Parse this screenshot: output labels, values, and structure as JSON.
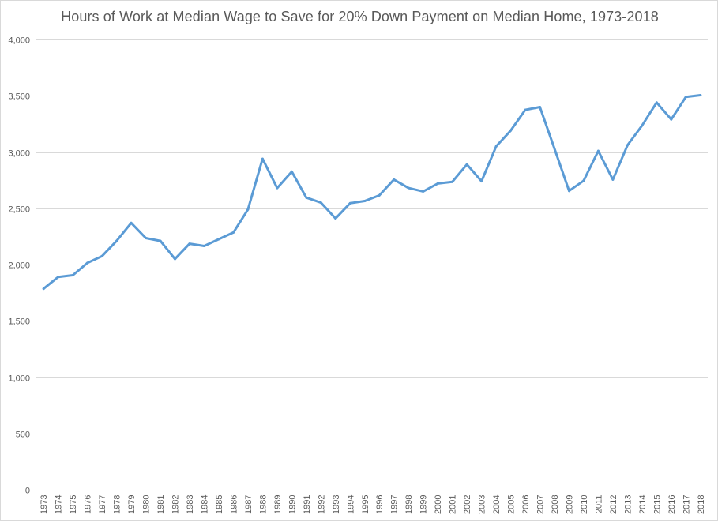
{
  "chart_data": {
    "type": "line",
    "title": "Hours of Work at Median Wage to Save for 20% Down Payment on Median Home, 1973-2018",
    "xlabel": "",
    "ylabel": "",
    "ylim": [
      0,
      4000
    ],
    "y_ticks": [
      "0",
      "500",
      "1,000",
      "1,500",
      "2,000",
      "2,500",
      "3,000",
      "3,500",
      "4,000"
    ],
    "y_tick_values": [
      0,
      500,
      1000,
      1500,
      2000,
      2500,
      3000,
      3500,
      4000
    ],
    "grid": true,
    "legend": "none",
    "categories": [
      "1973",
      "1974",
      "1975",
      "1976",
      "1977",
      "1978",
      "1979",
      "1980",
      "1981",
      "1982",
      "1983",
      "1984",
      "1985",
      "1986",
      "1987",
      "1988",
      "1989",
      "1990",
      "1991",
      "1992",
      "1993",
      "1994",
      "1995",
      "1996",
      "1997",
      "1998",
      "1999",
      "2000",
      "2001",
      "2002",
      "2003",
      "2004",
      "2005",
      "2006",
      "2007",
      "2008",
      "2009",
      "2010",
      "2011",
      "2012",
      "2013",
      "2014",
      "2015",
      "2016",
      "2017",
      "2018"
    ],
    "series": [
      {
        "name": "Hours of Work",
        "color": "#5b9bd5",
        "values": [
          1785,
          1890,
          1905,
          2015,
          2075,
          2210,
          2370,
          2235,
          2210,
          2050,
          2185,
          2165,
          2225,
          2285,
          2490,
          2940,
          2680,
          2825,
          2595,
          2550,
          2410,
          2545,
          2565,
          2615,
          2755,
          2680,
          2650,
          2720,
          2735,
          2890,
          2740,
          3050,
          3190,
          3375,
          3400,
          3030,
          2655,
          2745,
          3010,
          2755,
          3060,
          3235,
          3440,
          3290,
          3490,
          3505
        ]
      }
    ]
  }
}
